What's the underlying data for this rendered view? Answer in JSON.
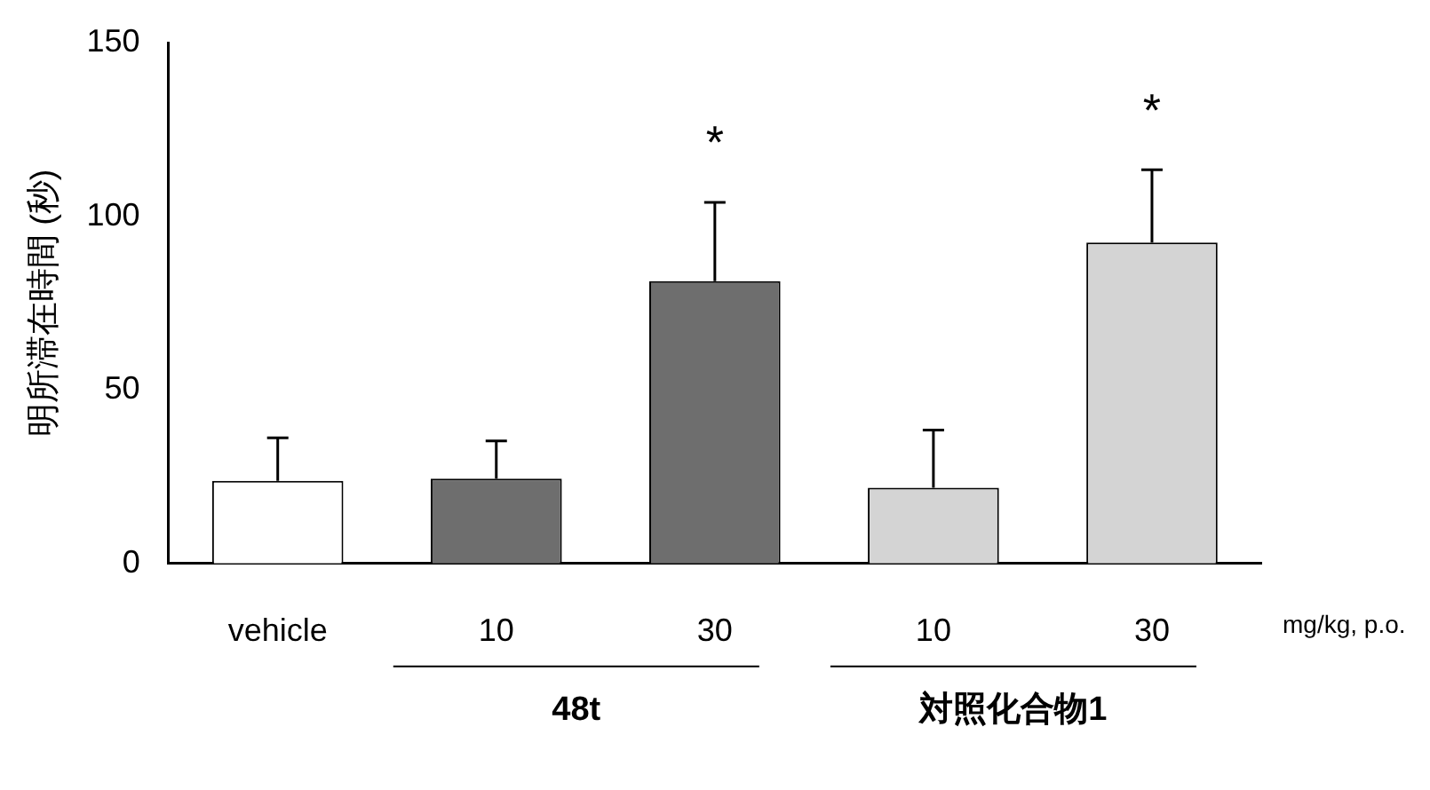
{
  "chart_data": {
    "type": "bar",
    "ylabel": "明所滞在時間 (秒)",
    "categories": [
      "vehicle",
      "10",
      "30",
      "10",
      "30"
    ],
    "values": [
      23.8,
      24.4,
      81.3,
      21.8,
      92.4
    ],
    "colors": [
      "#ffffff",
      "#6e6e6e",
      "#6e6e6e",
      "#d4d4d4",
      "#d4d4d4"
    ],
    "errors": [
      [
        23.8,
        36.2
      ],
      [
        24.4,
        35.3
      ],
      [
        81.3,
        104
      ],
      [
        21.8,
        38.4
      ],
      [
        92.4,
        113.4
      ]
    ],
    "ylim": [
      0,
      150
    ],
    "yticks": [
      0,
      50,
      100,
      150
    ],
    "grid": false,
    "legend": false,
    "annotations": [
      "mg/kg, p.o.",
      "48t",
      "対照化合物1",
      "*",
      "*"
    ]
  }
}
